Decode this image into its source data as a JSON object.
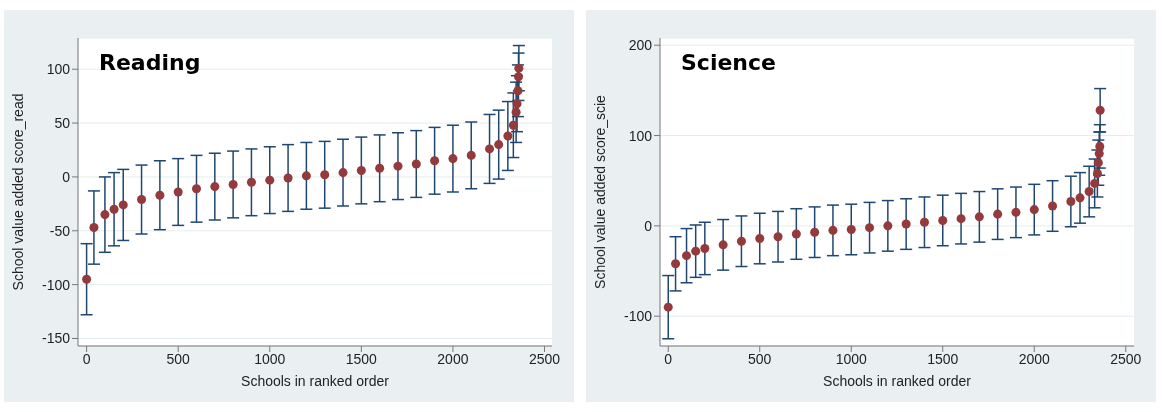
{
  "chart_data": [
    {
      "type": "scatter",
      "title": "Reading",
      "xlabel": "Schools in ranked order",
      "ylabel": "School value added score_read",
      "xlim": [
        -47,
        2541
      ],
      "xticks": [
        0,
        500,
        1000,
        1500,
        2000,
        2500
      ],
      "ylim": [
        -157,
        129
      ],
      "yticks": [
        -150,
        -100,
        -50,
        0,
        50,
        100
      ],
      "grid": "y",
      "marker": "circle",
      "series": [
        {
          "color": "#943a3c",
          "x": [
            0,
            40,
            100,
            150,
            200,
            300,
            400,
            500,
            600,
            700,
            800,
            900,
            1000,
            1100,
            1200,
            1300,
            1400,
            1500,
            1600,
            1700,
            1800,
            1900,
            2000,
            2100,
            2200,
            2250,
            2300,
            2330,
            2345,
            2350,
            2355,
            2358,
            2360
          ],
          "values": [
            -95,
            -47,
            -35,
            -30,
            -26,
            -21,
            -17,
            -14,
            -11,
            -9,
            -7,
            -5,
            -3,
            -1,
            1,
            2,
            4,
            6,
            8,
            10,
            12,
            15,
            17,
            20,
            26,
            30,
            38,
            48,
            60,
            68,
            80,
            93,
            101
          ],
          "errors": [
            33,
            34,
            35,
            34,
            33,
            32,
            32,
            31,
            31,
            31,
            31,
            31,
            31,
            31,
            31,
            31,
            31,
            31,
            31,
            31,
            31,
            31,
            31,
            31,
            32,
            32,
            32,
            30,
            28,
            26,
            24,
            22,
            21
          ]
        }
      ]
    },
    {
      "type": "scatter",
      "title": "Science",
      "xlabel": "Schools in ranked order",
      "ylabel": "School value added score_scie",
      "xlim": [
        -45,
        2545
      ],
      "xticks": [
        0,
        500,
        1000,
        1500,
        2000,
        2500
      ],
      "ylim": [
        -133,
        208
      ],
      "yticks": [
        -100,
        0,
        100,
        200
      ],
      "grid": "y",
      "marker": "circle",
      "series": [
        {
          "color": "#943a3c",
          "x": [
            0,
            40,
            100,
            150,
            200,
            300,
            400,
            500,
            600,
            700,
            800,
            900,
            1000,
            1100,
            1200,
            1300,
            1400,
            1500,
            1600,
            1700,
            1800,
            1900,
            2000,
            2100,
            2200,
            2250,
            2300,
            2330,
            2345,
            2350,
            2355,
            2358,
            2360
          ],
          "values": [
            -90,
            -42,
            -33,
            -28,
            -25,
            -21,
            -17,
            -14,
            -12,
            -9,
            -7,
            -5,
            -4,
            -2,
            0,
            2,
            4,
            6,
            8,
            10,
            13,
            15,
            18,
            22,
            27,
            31,
            38,
            47,
            58,
            70,
            80,
            88,
            128
          ],
          "errors": [
            35,
            30,
            30,
            29,
            29,
            28,
            28,
            28,
            28,
            28,
            28,
            28,
            28,
            28,
            28,
            28,
            28,
            28,
            28,
            28,
            28,
            28,
            28,
            28,
            28,
            28,
            28,
            27,
            26,
            25,
            24,
            24,
            24
          ]
        }
      ]
    }
  ]
}
